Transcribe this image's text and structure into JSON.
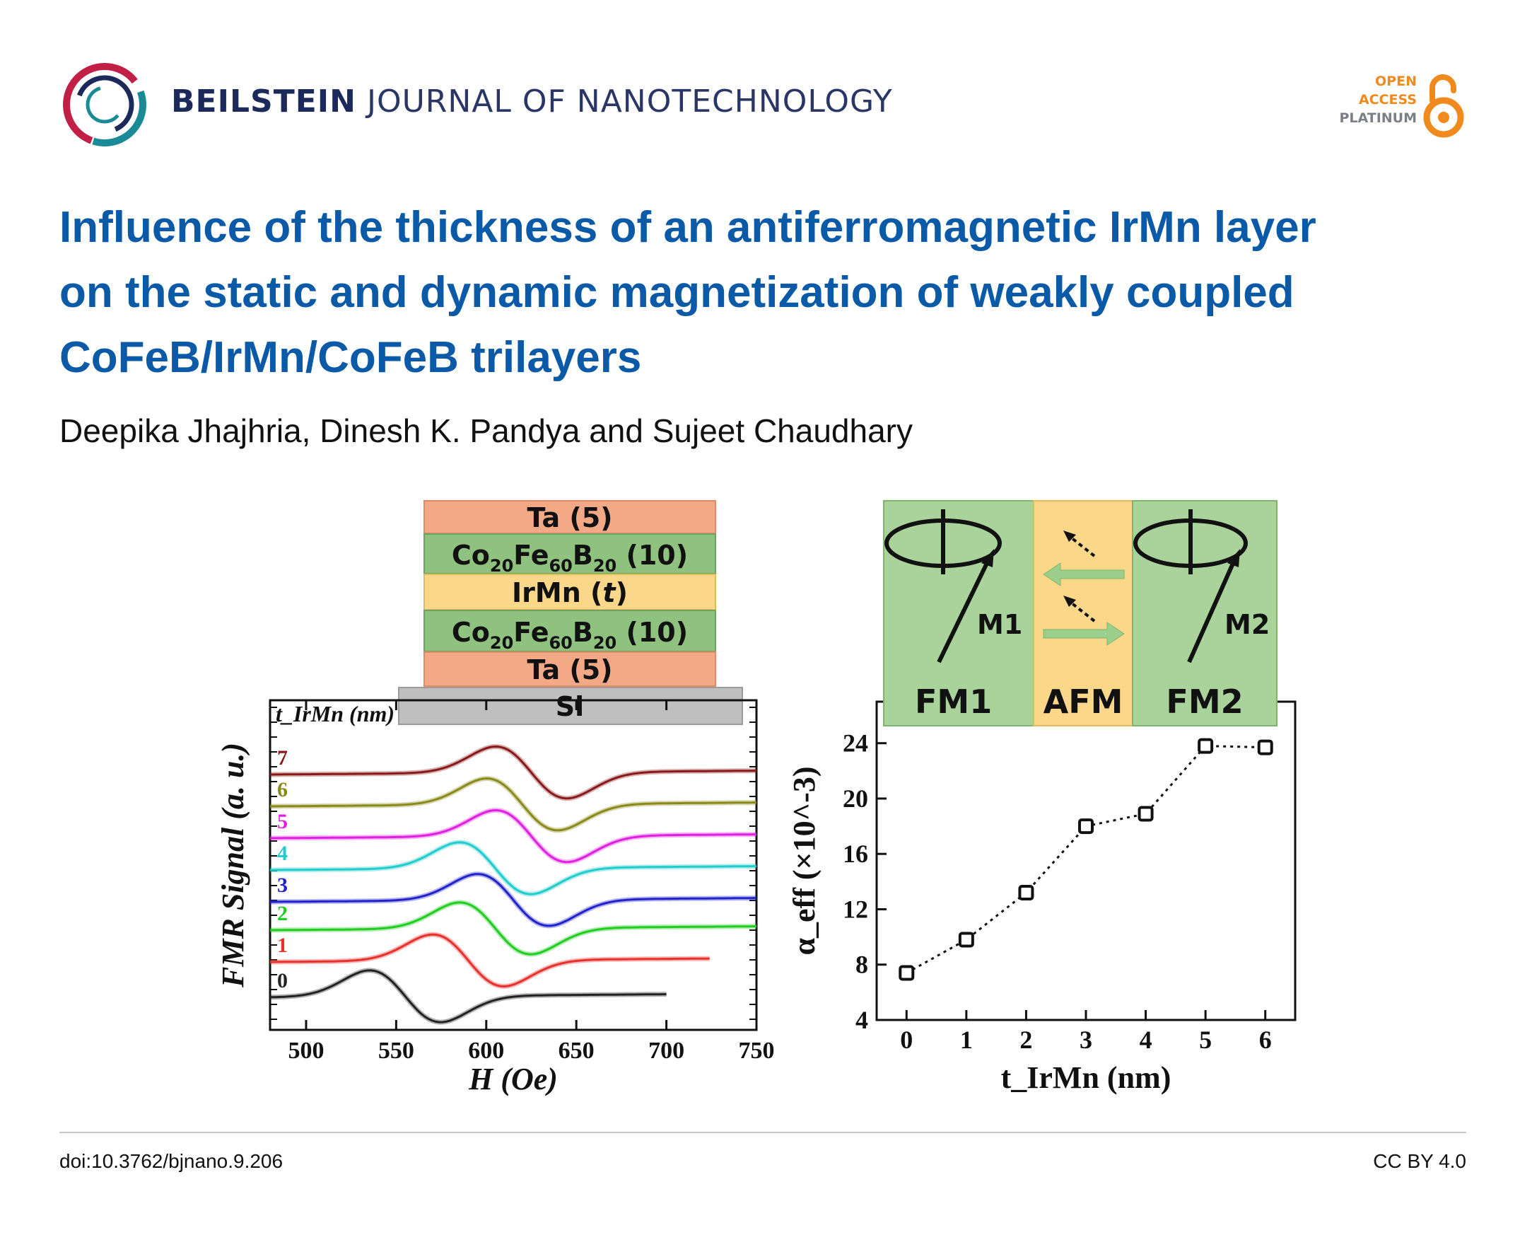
{
  "header": {
    "journal_bold": "BEILSTEIN",
    "journal_rest": "JOURNAL OF NANOTECHNOLOGY",
    "open_access": [
      "OPEN",
      "ACCESS",
      "PLATINUM"
    ],
    "colors": {
      "navy": "#1b2a5a",
      "orange": "#f08a1c",
      "grey": "#7b7f86",
      "logo_red": "#c21f46",
      "logo_teal": "#1a8a96"
    }
  },
  "article": {
    "title_lines": [
      "Influence of the thickness of an antiferromagnetic IrMn layer",
      "on the static and dynamic magnetization of weakly coupled",
      "CoFeB/IrMn/CoFeB trilayers"
    ],
    "authors": "Deepika Jhajhria, Dinesh K. Pandya and Sujeet Chaudhary",
    "title_color": "#0a5aa8"
  },
  "figure": {
    "stack": {
      "layers": [
        {
          "label": "Ta (5)",
          "color": "#f3a985"
        },
        {
          "label": "Co20Fe60B20 (10)",
          "color": "#8fc27f"
        },
        {
          "label": "IrMn (t)",
          "color": "#fbd78a"
        },
        {
          "label": "Co20Fe60B20 (10)",
          "color": "#8fc27f"
        },
        {
          "label": "Ta (5)",
          "color": "#f3a985"
        },
        {
          "label": "Si",
          "color": "#bfbfbf"
        }
      ]
    },
    "schematic": {
      "labels": [
        "FM1",
        "AFM",
        "FM2"
      ],
      "vectors": [
        "M1",
        "M2"
      ],
      "colors": {
        "fm": "#a9d39a",
        "afm": "#fbd78a",
        "arrow": "#9ccf8c"
      }
    }
  },
  "chart_data": [
    {
      "type": "line",
      "xlabel": "H (Oe)",
      "ylabel": "FMR Signal (a. u.)",
      "legend_title": "t_IrMn (nm)",
      "xlim": [
        480,
        750
      ],
      "xticks": [
        500,
        550,
        600,
        650,
        700,
        750
      ],
      "series": [
        {
          "name": "0",
          "color": "#222222",
          "x_start": 480,
          "x_end": 700,
          "h_res": 555
        },
        {
          "name": "1",
          "color": "#e8302c",
          "x_start": 480,
          "x_end": 725,
          "h_res": 590
        },
        {
          "name": "2",
          "color": "#22cc22",
          "x_start": 480,
          "x_end": 750,
          "h_res": 605
        },
        {
          "name": "3",
          "color": "#2222cc",
          "x_start": 480,
          "x_end": 750,
          "h_res": 615
        },
        {
          "name": "4",
          "color": "#22cccc",
          "x_start": 480,
          "x_end": 750,
          "h_res": 605
        },
        {
          "name": "5",
          "color": "#e020e0",
          "x_start": 480,
          "x_end": 750,
          "h_res": 625
        },
        {
          "name": "6",
          "color": "#8a8a1a",
          "x_start": 480,
          "x_end": 750,
          "h_res": 620
        },
        {
          "name": "7",
          "color": "#8a1a1a",
          "x_start": 480,
          "x_end": 750,
          "h_res": 625
        }
      ]
    },
    {
      "type": "scatter",
      "xlabel": "t_IrMn (nm)",
      "ylabel": "α_eff (×10^-3)",
      "xlim": [
        -0.5,
        6.5
      ],
      "ylim": [
        4,
        27
      ],
      "xticks": [
        0,
        1,
        2,
        3,
        4,
        5,
        6
      ],
      "yticks": [
        4,
        8,
        12,
        16,
        20,
        24
      ],
      "x": [
        0,
        1,
        2,
        3,
        4,
        5,
        6
      ],
      "y": [
        7.4,
        9.8,
        13.2,
        18.0,
        18.9,
        23.8,
        23.7
      ]
    }
  ],
  "footer": {
    "doi": "doi:10.3762/bjnano.9.206",
    "license": "CC BY 4.0"
  }
}
